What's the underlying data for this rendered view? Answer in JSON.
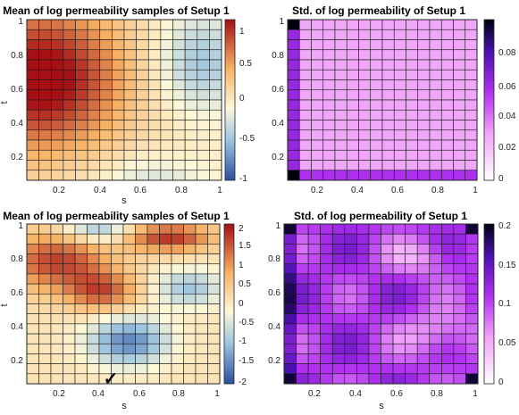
{
  "chart_data": [
    {
      "type": "heatmap",
      "title": "Mean of log permeability samples of Setup 1",
      "xlabel": "s",
      "ylabel": "t",
      "x_ticks": [
        "0.2",
        "0.4",
        "0.6",
        "0.8",
        "1"
      ],
      "y_ticks": [
        "0.2",
        "0.4",
        "0.6",
        "0.8",
        "1"
      ],
      "xlim": [
        0.05,
        1.0
      ],
      "ylim": [
        0.05,
        1.0
      ],
      "grid_size": [
        16,
        16
      ],
      "colormap": "red-yellow-blue (diverging)",
      "colorbar": {
        "min": -1,
        "max": 1.3,
        "ticks": [
          "1",
          "0.5",
          "0",
          "-0.5",
          "-1"
        ]
      },
      "cell_edges": true,
      "description_field": "smooth field: high (~1.2) in upper-left region around s 0.1-0.2, t 0.4-0.8, decreasing to about -0.5 near s 0.8-0.9, t 0.6-0.9 and to ~-0.3 at bottom center"
    },
    {
      "type": "heatmap",
      "title": "Std. of log permeability of Setup 1",
      "xlabel": "",
      "ylabel": "",
      "x_ticks": [
        "0.2",
        "0.4",
        "0.6",
        "0.8",
        "1"
      ],
      "y_ticks": [
        "0.2",
        "0.4",
        "0.6",
        "0.8",
        "1"
      ],
      "xlim": [
        0.05,
        1.0
      ],
      "ylim": [
        0.05,
        1.0
      ],
      "grid_size": [
        16,
        16
      ],
      "colormap": "white-magenta-purple-black",
      "colorbar": {
        "min": 0,
        "max": 0.09,
        "ticks": [
          "0.08",
          "0.06",
          "0.04",
          "0.02",
          "0"
        ]
      },
      "cell_edges": true,
      "description_field": "mostly uniform ~0.025; higher values along left column and bottom row, peaking ~0.09 at the corners (top-left, bottom-left)"
    },
    {
      "type": "heatmap",
      "title": "Mean of log permeability samples of Setup 1",
      "xlabel": "s",
      "ylabel": "t",
      "x_ticks": [
        "0.2",
        "0.4",
        "0.6",
        "0.8",
        "1"
      ],
      "y_ticks": [
        "0.2",
        "0.4",
        "0.6",
        "0.8",
        "1"
      ],
      "xlim": [
        0.05,
        1.0
      ],
      "ylim": [
        0.05,
        1.0
      ],
      "grid_size": [
        16,
        16
      ],
      "colormap": "red-yellow-blue (diverging)",
      "colorbar": {
        "min": -2,
        "max": 2.2,
        "ticks": [
          "2",
          "1.5",
          "1",
          "0.5",
          "0",
          "-0.5",
          "-1",
          "-1.5",
          "-2"
        ]
      },
      "cell_edges": true,
      "marker": {
        "symbol": "✓",
        "s": 0.47,
        "t": 0.07
      },
      "description_field": "red diagonal band from upper-left (s 0.1, t 0.85) down to s 0.45, t 0.6; red patch top-right s 0.65-0.85, t 0.9; blue areas near s 0.4, t 0.95, s 0.8, t 0.6 and strongest around s 0.5-0.6, t 0.25-0.35 (~-1.7)"
    },
    {
      "type": "heatmap",
      "title": "Std. of log permeability of Setup 1",
      "xlabel": "s",
      "ylabel": "",
      "x_ticks": [
        "0.2",
        "0.4",
        "0.6",
        "0.8",
        "1"
      ],
      "y_ticks": [
        "0.2",
        "0.4",
        "0.6",
        "0.8",
        "1"
      ],
      "xlim": [
        0.05,
        1.0
      ],
      "ylim": [
        0.05,
        1.0
      ],
      "grid_size": [
        16,
        16
      ],
      "colormap": "white-magenta-purple-black",
      "colorbar": {
        "min": 0,
        "max": 0.2,
        "ticks": [
          "0.2",
          "0.15",
          "0.1",
          "0.05",
          "0"
        ]
      },
      "cell_edges": true,
      "description_field": "values mostly 0.07-0.13 with lighter (~0.05) patches mid-right; darker (~0.18) along left column and at corners"
    }
  ]
}
